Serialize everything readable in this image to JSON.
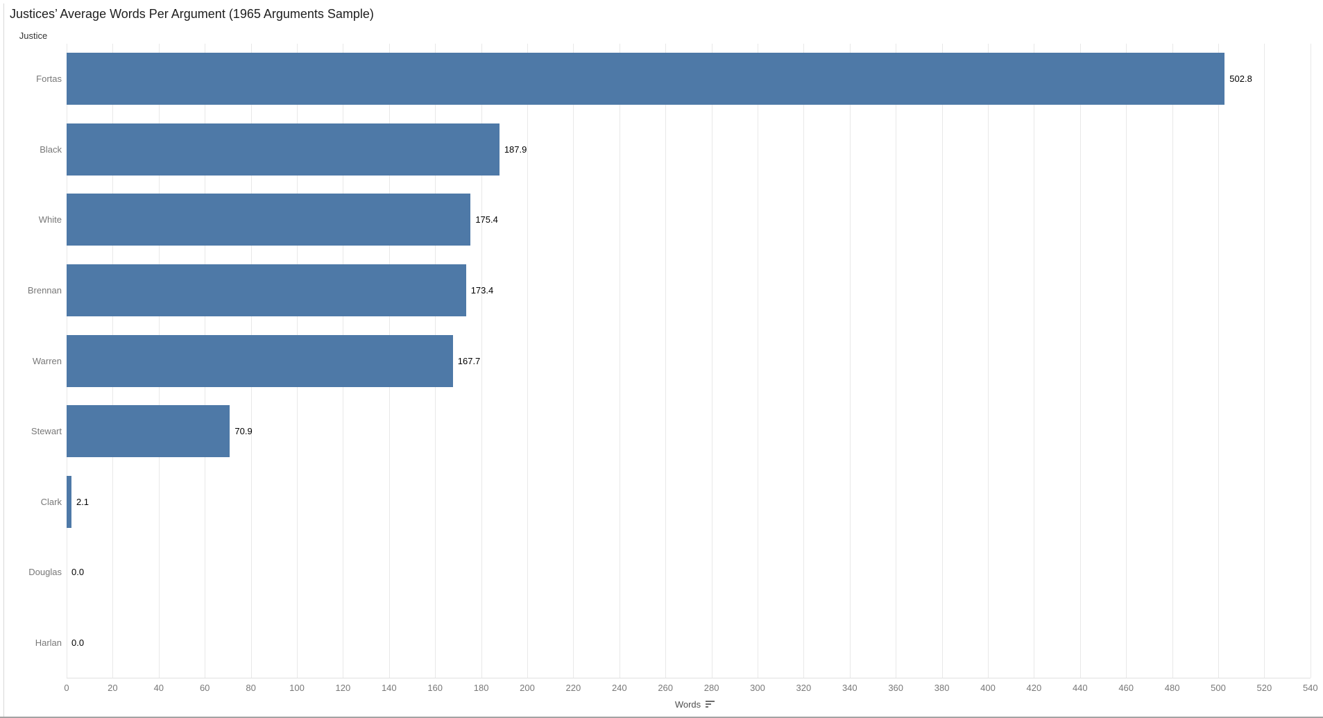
{
  "title": "Justices’ Average Words Per Argument (1965 Arguments Sample)",
  "row_header": "Justice",
  "axis": {
    "title": "Words",
    "sort_indicator": "sort-descending-icon"
  },
  "colors": {
    "bar": "#4e79a7",
    "gridline": "#e8e8e8",
    "axis_line": "#e0e0e0",
    "category_label": "#787878",
    "tick_label": "#787878",
    "value_label": "#000000",
    "title_text": "#1e1e1e"
  },
  "chart_data": {
    "type": "bar",
    "orientation": "horizontal",
    "title": "Justices’ Average Words Per Argument (1965 Arguments Sample)",
    "xlabel": "Words",
    "ylabel": "Justice",
    "categories": [
      "Fortas",
      "Black",
      "White",
      "Brennan",
      "Warren",
      "Stewart",
      "Clark",
      "Douglas",
      "Harlan"
    ],
    "values": [
      502.8,
      187.9,
      175.4,
      173.4,
      167.7,
      70.9,
      2.1,
      0.0,
      0.0
    ],
    "value_labels": [
      "502.8",
      "187.9",
      "175.4",
      "173.4",
      "167.7",
      "70.9",
      "2.1",
      "0.0",
      "0.0"
    ],
    "xlim": [
      0,
      540
    ],
    "x_ticks": [
      0,
      20,
      40,
      60,
      80,
      100,
      120,
      140,
      160,
      180,
      200,
      220,
      240,
      260,
      280,
      300,
      320,
      340,
      360,
      380,
      400,
      420,
      440,
      460,
      480,
      500,
      520,
      540
    ],
    "grid": true,
    "legend": false,
    "sort": "descending"
  }
}
